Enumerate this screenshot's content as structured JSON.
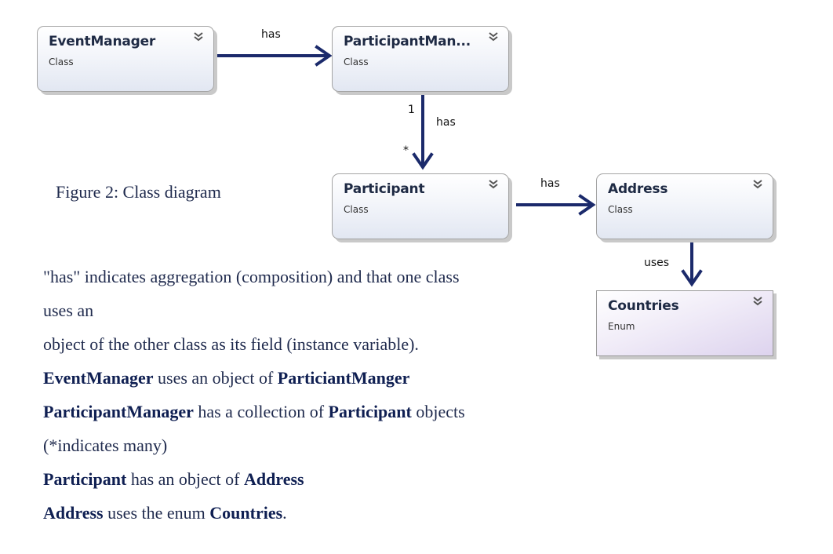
{
  "classes": {
    "event_manager": {
      "name": "EventManager",
      "stereotype": "Class"
    },
    "participant_manager": {
      "name": "ParticipantMan...",
      "stereotype": "Class"
    },
    "participant": {
      "name": "Participant",
      "stereotype": "Class"
    },
    "address": {
      "name": "Address",
      "stereotype": "Class"
    },
    "countries": {
      "name": "Countries",
      "stereotype": "Enum"
    }
  },
  "relations": {
    "em_pm": "has",
    "pm_p": "has",
    "pm_p_source_mult": "1",
    "pm_p_target_mult": "*",
    "p_a": "has",
    "a_c": "uses"
  },
  "caption": "Figure 2: Class diagram",
  "notes": {
    "line1": "\"has\" indicates aggregation (composition) and that one class",
    "line2": "uses an",
    "line3": "object of the other class as its field (instance variable).",
    "line4": {
      "a": "EventManager",
      "b": " uses an object of ",
      "c": "ParticiantManger"
    },
    "line5": {
      "a": "ParticipantManager",
      "b": " has a collection of ",
      "c": "Participant",
      "d": " objects"
    },
    "line6": "(*indicates many)",
    "line7": {
      "a": "Participant",
      "b": " has an object of ",
      "c": "Address"
    },
    "line8": {
      "a": "Address",
      "b": " uses the enum ",
      "c": "Countries",
      "d": "."
    }
  },
  "colors": {
    "arrow": "#1b2a6b",
    "text": "#1f2a4d"
  },
  "icons": {
    "collapse": "double-chevron-down-icon"
  }
}
